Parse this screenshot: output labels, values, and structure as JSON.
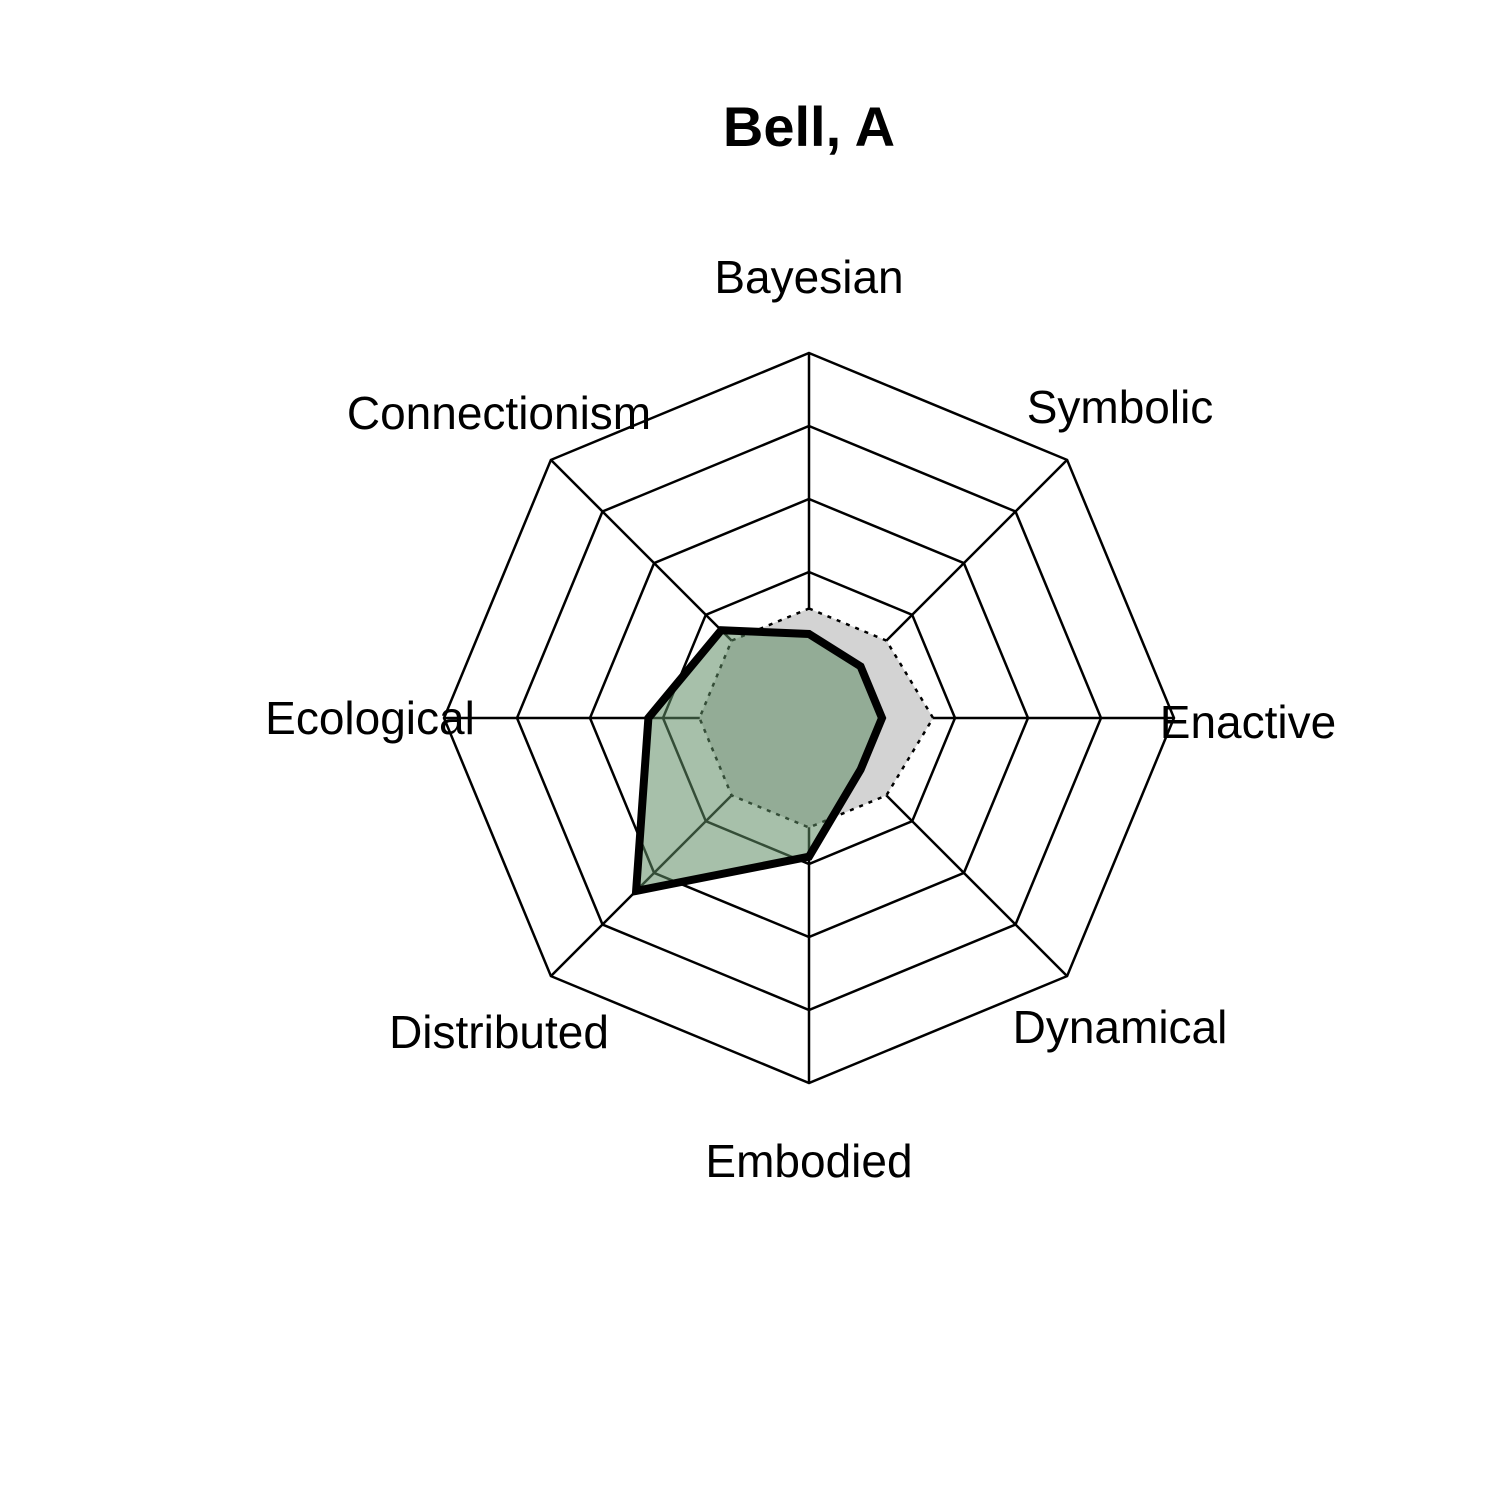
{
  "chart_data": {
    "type": "radar",
    "title": "Bell, A",
    "axes": [
      "Bayesian",
      "Symbolic",
      "Enactive",
      "Dynamical",
      "Embodied",
      "Distributed",
      "Ecological",
      "Connectionism"
    ],
    "rings": 5,
    "range": [
      0,
      1
    ],
    "series": [
      {
        "style": "reference",
        "values": [
          0.3,
          0.3,
          0.34,
          0.3,
          0.3,
          0.3,
          0.3,
          0.3
        ],
        "fill": "#d3d3d3",
        "line": "#000000",
        "line_style": "dotted"
      },
      {
        "style": "individual",
        "values": [
          0.23,
          0.2,
          0.2,
          0.2,
          0.38,
          0.67,
          0.44,
          0.34
        ],
        "fill": "#5e8c64",
        "fill_opacity": 0.55,
        "line": "#000000",
        "line_style": "solid"
      }
    ]
  }
}
